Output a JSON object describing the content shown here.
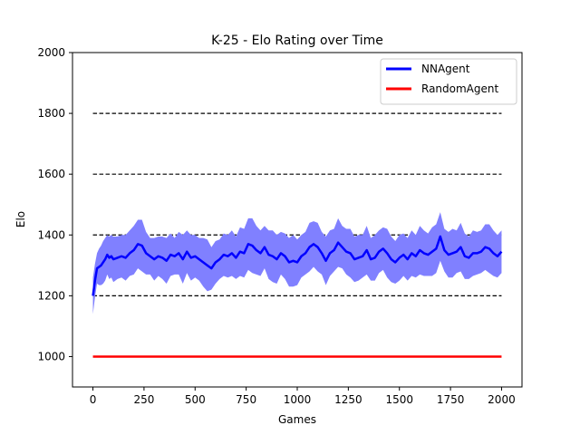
{
  "chart_data": {
    "type": "line",
    "title": "K-25 - Elo Rating over Time",
    "xlabel": "Games",
    "ylabel": "Elo",
    "xlim": [
      -100,
      2100
    ],
    "ylim": [
      900,
      2000
    ],
    "xticks": [
      0,
      250,
      500,
      750,
      1000,
      1250,
      1500,
      1750,
      2000
    ],
    "yticks": [
      1000,
      1200,
      1400,
      1600,
      1800,
      2000
    ],
    "reference_lines": {
      "style": "dashed",
      "color": "#000000",
      "x_range": [
        0,
        2000
      ],
      "y_values": [
        1200,
        1400,
        1600,
        1800
      ]
    },
    "legend": {
      "position": "top-right"
    },
    "series": [
      {
        "name": "NNAgent",
        "color": "#0000ff",
        "band_color": "#8080ff",
        "x": [
          0,
          10,
          20,
          30,
          40,
          50,
          60,
          70,
          80,
          90,
          100,
          120,
          140,
          160,
          180,
          200,
          220,
          240,
          260,
          280,
          300,
          320,
          340,
          360,
          380,
          400,
          420,
          440,
          460,
          480,
          500,
          520,
          540,
          560,
          580,
          600,
          620,
          640,
          660,
          680,
          700,
          720,
          740,
          760,
          780,
          800,
          820,
          840,
          860,
          880,
          900,
          920,
          940,
          960,
          980,
          1000,
          1020,
          1040,
          1060,
          1080,
          1100,
          1120,
          1140,
          1160,
          1180,
          1200,
          1220,
          1240,
          1260,
          1280,
          1300,
          1320,
          1340,
          1360,
          1380,
          1400,
          1420,
          1440,
          1460,
          1480,
          1500,
          1520,
          1540,
          1560,
          1580,
          1600,
          1620,
          1640,
          1660,
          1680,
          1700,
          1720,
          1740,
          1760,
          1780,
          1800,
          1820,
          1840,
          1860,
          1880,
          1900,
          1920,
          1940,
          1960,
          1980,
          2000
        ],
        "y": [
          1200,
          1250,
          1290,
          1295,
          1300,
          1310,
          1320,
          1335,
          1325,
          1330,
          1320,
          1325,
          1330,
          1325,
          1340,
          1350,
          1370,
          1365,
          1340,
          1330,
          1320,
          1330,
          1325,
          1315,
          1335,
          1330,
          1340,
          1320,
          1345,
          1325,
          1330,
          1320,
          1310,
          1300,
          1290,
          1310,
          1320,
          1335,
          1330,
          1340,
          1325,
          1345,
          1340,
          1370,
          1365,
          1350,
          1340,
          1360,
          1335,
          1330,
          1320,
          1340,
          1330,
          1310,
          1315,
          1310,
          1330,
          1340,
          1360,
          1370,
          1360,
          1340,
          1315,
          1340,
          1350,
          1375,
          1360,
          1345,
          1340,
          1320,
          1325,
          1330,
          1350,
          1320,
          1325,
          1345,
          1355,
          1340,
          1320,
          1310,
          1325,
          1335,
          1320,
          1340,
          1330,
          1350,
          1340,
          1335,
          1345,
          1355,
          1395,
          1350,
          1335,
          1340,
          1345,
          1360,
          1330,
          1325,
          1340,
          1340,
          1345,
          1360,
          1355,
          1340,
          1330,
          1345
        ],
        "band": [
          60,
          55,
          50,
          60,
          65,
          70,
          70,
          65,
          70,
          70,
          75,
          70,
          70,
          75,
          75,
          80,
          80,
          85,
          70,
          60,
          70,
          65,
          70,
          75,
          70,
          60,
          70,
          80,
          70,
          75,
          70,
          70,
          80,
          85,
          70,
          70,
          65,
          70,
          70,
          75,
          70,
          80,
          80,
          85,
          90,
          80,
          75,
          70,
          80,
          85,
          80,
          70,
          75,
          80,
          85,
          75,
          70,
          70,
          80,
          75,
          80,
          70,
          80,
          75,
          70,
          80,
          70,
          75,
          80,
          75,
          75,
          70,
          80,
          70,
          75,
          70,
          70,
          80,
          75,
          70,
          75,
          70,
          70,
          75,
          70,
          80,
          75,
          70,
          80,
          80,
          80,
          70,
          75,
          80,
          70,
          80,
          75,
          70,
          75,
          70,
          70,
          75,
          80,
          75,
          70,
          70
        ]
      },
      {
        "name": "RandomAgent",
        "color": "#ff0000",
        "x": [
          0,
          2000
        ],
        "y": [
          1000,
          1000
        ]
      }
    ]
  }
}
